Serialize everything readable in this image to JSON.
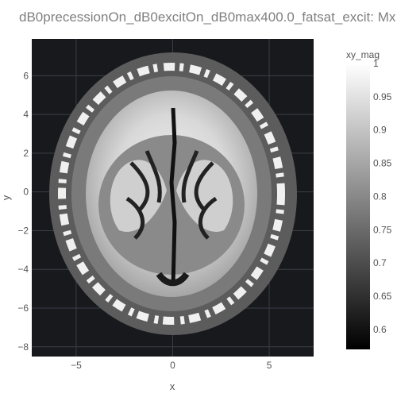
{
  "chart_data": {
    "type": "heatmap",
    "title": "dB0precessionOn_dB0excitOn_dB0max400.0_fatsat_excit: Mx",
    "xlabel": "x",
    "ylabel": "y",
    "xlim": [
      -7.3,
      7.3
    ],
    "ylim": [
      -8.5,
      7.9
    ],
    "x_ticks": [
      -5,
      0,
      5
    ],
    "x_tick_labels": [
      "−5",
      "0",
      "5"
    ],
    "y_ticks": [
      6,
      4,
      2,
      0,
      -2,
      -4,
      -6,
      -8
    ],
    "y_tick_labels": [
      "6",
      "4",
      "2",
      "0",
      "−2",
      "−4",
      "−6",
      "−8"
    ],
    "colorbar": {
      "title": "xy_mag",
      "range": [
        0.57,
        1.0
      ],
      "ticks": [
        1,
        0.95,
        0.9,
        0.85,
        0.8,
        0.75,
        0.7,
        0.65,
        0.6
      ],
      "tick_labels": [
        "1",
        "0.95",
        "0.9",
        "0.85",
        "0.8",
        "0.75",
        "0.7",
        "0.65",
        "0.6"
      ],
      "colorscale": "greys"
    },
    "plot_background": "#17191c",
    "grid": true,
    "image_description_values": {
      "background_value": "none",
      "skull_ring_value": 0.66,
      "bright_fat_value": 1.0,
      "brain_white_matter_value": 0.97,
      "gray_matter_value": 0.75,
      "csf_value": 0.6
    }
  }
}
